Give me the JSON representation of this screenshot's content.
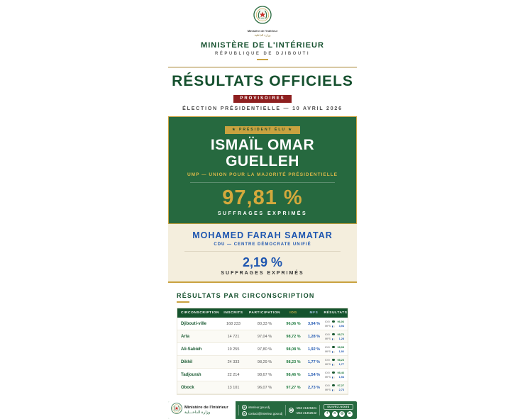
{
  "colors": {
    "primary_green": "#26693f",
    "dark_green": "#14532d",
    "gold": "#c9a23f",
    "badge_red": "#8e1f1f",
    "blue": "#1e56b0",
    "cream": "#f4eedd"
  },
  "header": {
    "logo_caption_fr": "Ministère de l'Intérieur",
    "logo_caption_ar": "وزارة الداخلية",
    "ministry": "MINISTÈRE DE L'INTÉRIEUR",
    "republic": "RÉPUBLIQUE DE DJIBOUTI"
  },
  "title": {
    "main": "RÉSULTATS OFFICIELS",
    "badge": "PROVISOIRES",
    "subtitle": "ÉLECTION PRÉSIDENTIELLE — 10 AVRIL 2026"
  },
  "winner": {
    "badge": "★   PRÉSIDENT ÉLU   ★",
    "name_line1": "ISMAÏL OMAR",
    "name_line2": "GUELLEH",
    "party": "UMP — UNION POUR LA MAJORITÉ PRÉSIDENTIELLE",
    "score": "97,81 %",
    "score_label": "SUFFRAGES EXPRIMÉS"
  },
  "runner_up": {
    "name": "MOHAMED FARAH SAMATAR",
    "party": "CDU — CENTRE DÉMOCRATE UNIFIÉ",
    "score": "2,19 %",
    "score_label": "SUFFRAGES EXPRIMÉS"
  },
  "table": {
    "title": "RÉSULTATS PAR CIRCONSCRIPTION",
    "headers": [
      "CIRCONSCRIPTION",
      "INSCRITS",
      "PARTICIPATION",
      "IOG",
      "MFS",
      "RÉSULTATS"
    ],
    "bar_labels": {
      "iog": "IOG",
      "mfs": "MFS"
    },
    "rows": [
      {
        "name": "Djibouti-ville",
        "inscrits": "168 233",
        "participation": "80,33 %",
        "iog": "96,06 %",
        "mfs": "3,94 %",
        "iog_value": 96.06,
        "mfs_value": 3.94,
        "iog_bar": "96,06",
        "mfs_bar": "3,94"
      },
      {
        "name": "Arta",
        "inscrits": "14 721",
        "participation": "97,04 %",
        "iog": "98,72 %",
        "mfs": "1,28 %",
        "iog_value": 98.72,
        "mfs_value": 1.28,
        "iog_bar": "98,72",
        "mfs_bar": "1,28"
      },
      {
        "name": "Ali-Sabieh",
        "inscrits": "19 255",
        "participation": "97,80 %",
        "iog": "98,08 %",
        "mfs": "1,92 %",
        "iog_value": 98.08,
        "mfs_value": 1.92,
        "iog_bar": "98,08",
        "mfs_bar": "1,92"
      },
      {
        "name": "Dikhil",
        "inscrits": "24 333",
        "participation": "98,29 %",
        "iog": "98,23 %",
        "mfs": "1,77 %",
        "iog_value": 98.23,
        "mfs_value": 1.77,
        "iog_bar": "98,23",
        "mfs_bar": "1,77"
      },
      {
        "name": "Tadjourah",
        "inscrits": "22 214",
        "participation": "98,67 %",
        "iog": "98,46 %",
        "mfs": "1,54 %",
        "iog_value": 98.46,
        "mfs_value": 1.54,
        "iog_bar": "98,46",
        "mfs_bar": "1,54"
      },
      {
        "name": "Obock",
        "inscrits": "13 101",
        "participation": "96,07 %",
        "iog": "97,27 %",
        "mfs": "2,73 %",
        "iog_value": 97.27,
        "mfs_value": 2.73,
        "iog_bar": "97,27",
        "mfs_bar": "2,73"
      }
    ]
  },
  "footer": {
    "ministry_fr": "Ministère de l'Intérieur",
    "ministry_ar": "وزارة الداخـــلية",
    "website": "interieur.gouv.dj",
    "email": "contact@interieur.gouv.dj",
    "phone1": "+253 21325321",
    "phone2": "+253 21352542",
    "follow": "SUIVEZ-NOUS",
    "icons": {
      "globe": "⊕",
      "mail": "✉",
      "phone": "☎"
    },
    "social_glyphs": {
      "facebook": "f",
      "x": "X",
      "instagram": "◎",
      "linkedin": "in"
    }
  }
}
